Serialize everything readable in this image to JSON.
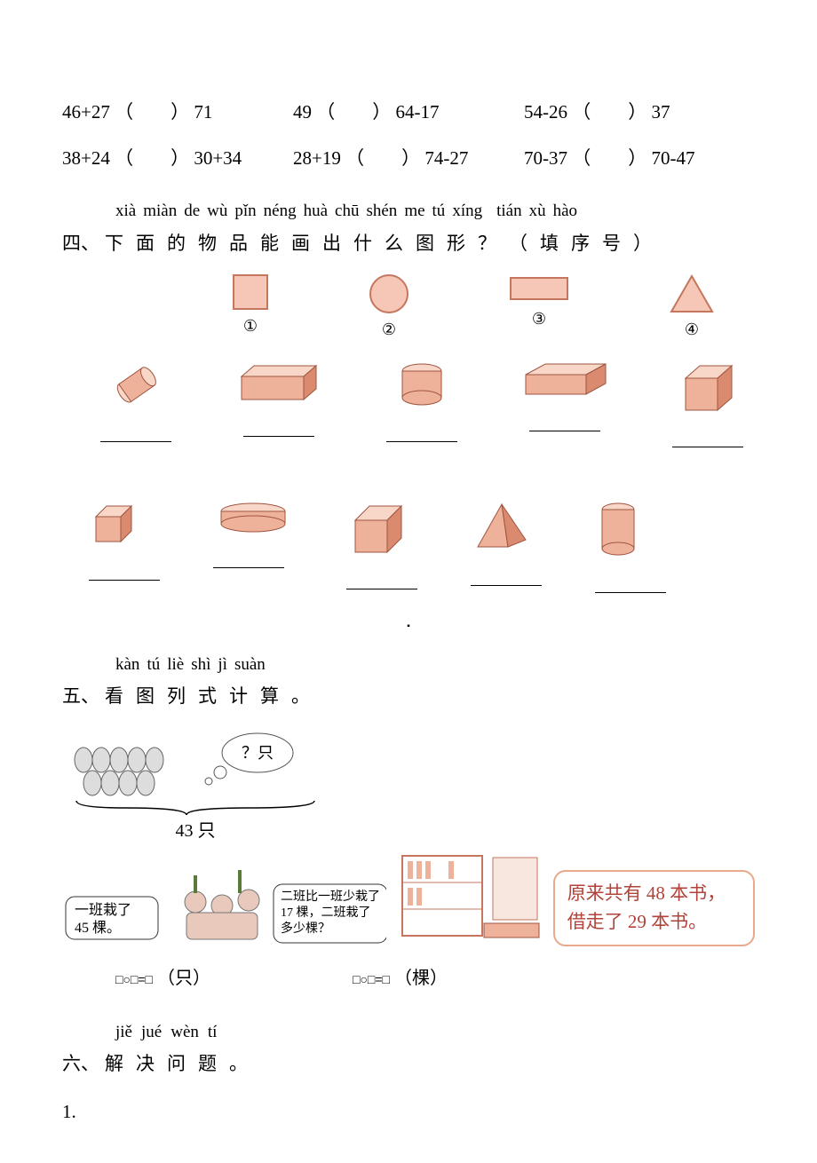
{
  "section3": {
    "row1": [
      {
        "lhs": "46+27",
        "rhs": "71"
      },
      {
        "lhs": "49",
        "rhs": "64-17"
      },
      {
        "lhs": "54-26",
        "rhs": "37"
      }
    ],
    "row2": [
      {
        "lhs": "38+24",
        "rhs": "30+34"
      },
      {
        "lhs": "28+19",
        "rhs": "74-27"
      },
      {
        "lhs": "70-37",
        "rhs": "70-47"
      }
    ],
    "paren": "（　　）"
  },
  "section4": {
    "pinyin": [
      "xià",
      "miàn",
      "de",
      "wù",
      "pǐn",
      "néng",
      "huà",
      "chū",
      "shén",
      "me",
      "tú",
      "xíng",
      "",
      "tián",
      "xù",
      "hào"
    ],
    "label": "四、",
    "han": [
      "下",
      "面",
      "的",
      "物",
      "品",
      "能",
      "画",
      "出",
      "什",
      "么",
      "图",
      "形",
      "？",
      "（",
      "填",
      "序",
      "号",
      "）"
    ],
    "ref_labels": [
      "①",
      "②",
      "③",
      "④"
    ],
    "ref_shapes": {
      "square": {
        "fill": "#f6c7b6",
        "stroke": "#c4765f"
      },
      "circle": {
        "fill": "#f6c7b6",
        "stroke": "#c4765f"
      },
      "rect": {
        "fill": "#f6c7b6",
        "stroke": "#c4765f"
      },
      "tri": {
        "fill": "#f6c7b6",
        "stroke": "#c4765f"
      }
    },
    "solid_colors": {
      "light": "#f8d6c8",
      "mid": "#eeb199",
      "dark": "#d98a6f",
      "stroke": "#a05540"
    }
  },
  "section5": {
    "pinyin": [
      "kàn",
      "tú",
      "liè",
      "shì",
      "jì",
      "suàn"
    ],
    "label": "五、",
    "han": [
      "看",
      "图",
      "列",
      "式",
      "计",
      "算",
      "。"
    ],
    "bunny": {
      "unknown": "？只",
      "total": "43 只"
    },
    "trees": {
      "class1": "一班栽了",
      "class1_qty": "45 棵。",
      "class2_line1": "二班比一班少栽了",
      "class2_line2": "17 棵，二班栽了",
      "class2_line3": "多少棵？"
    },
    "books": {
      "line1": "原来共有 48 本书，",
      "line2": "借走了 29 本书。"
    },
    "eq_tmpl_1_unit": "（只）",
    "eq_tmpl_2_unit": "（棵）",
    "eq_symbols": "□○□=□"
  },
  "section6": {
    "pinyin": [
      "jiě",
      "jué",
      "wèn",
      "tí"
    ],
    "label": "六、",
    "han": [
      "解",
      "决",
      "问",
      "题",
      "。"
    ]
  },
  "item1": "1."
}
